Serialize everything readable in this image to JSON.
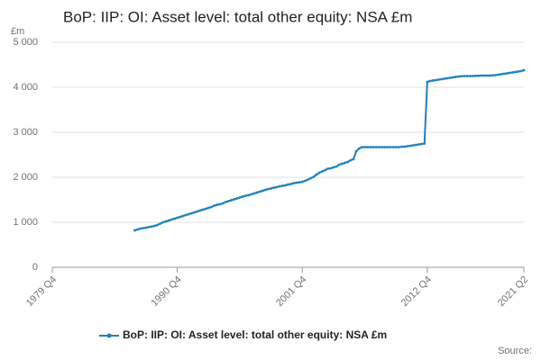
{
  "chart_data": {
    "type": "line",
    "title": "BoP: IIP: OI: Asset level: total other equity: NSA £m",
    "y_unit_label": "£m",
    "source": "Source:",
    "categories": [
      "1979 Q4",
      null,
      null,
      null,
      null,
      null,
      null,
      null,
      null,
      null,
      null,
      null,
      null,
      null,
      null,
      null,
      null,
      null,
      null,
      null,
      null,
      null,
      null,
      null,
      null,
      null,
      null,
      null,
      null,
      null,
      null,
      null,
      null,
      null,
      null,
      null,
      null,
      null,
      null,
      null,
      null,
      null,
      null,
      null,
      "1990 Q4",
      null,
      null,
      null,
      null,
      null,
      null,
      null,
      null,
      null,
      null,
      null,
      null,
      null,
      null,
      null,
      null,
      null,
      null,
      null,
      null,
      null,
      null,
      null,
      null,
      null,
      null,
      null,
      null,
      null,
      null,
      null,
      null,
      null,
      null,
      null,
      null,
      null,
      null,
      null,
      null,
      null,
      null,
      null,
      "2001 Q4",
      null,
      null,
      null,
      null,
      null,
      null,
      null,
      null,
      null,
      null,
      null,
      null,
      null,
      null,
      null,
      null,
      null,
      null,
      null,
      null,
      null,
      null,
      null,
      null,
      null,
      null,
      null,
      null,
      null,
      null,
      null,
      null,
      null,
      null,
      null,
      null,
      null,
      null,
      null,
      null,
      null,
      null,
      null,
      "2012 Q4",
      null,
      null,
      null,
      null,
      null,
      null,
      null,
      null,
      null,
      null,
      null,
      null,
      null,
      null,
      null,
      null,
      null,
      null,
      null,
      null,
      null,
      null,
      null,
      null,
      null,
      null,
      null,
      null,
      null,
      null,
      null,
      null,
      null,
      "2021 Q2"
    ],
    "series": [
      {
        "name": "BoP: IIP: OI: Asset level: total other equity: NSA £m",
        "color": "#1f80bd",
        "values": [
          null,
          null,
          null,
          null,
          null,
          null,
          null,
          null,
          null,
          null,
          null,
          null,
          null,
          null,
          null,
          null,
          null,
          null,
          null,
          null,
          null,
          null,
          null,
          null,
          null,
          null,
          null,
          null,
          null,
          820,
          840,
          860,
          870,
          880,
          895,
          905,
          920,
          940,
          970,
          1000,
          1020,
          1040,
          1060,
          1080,
          1100,
          1120,
          1140,
          1160,
          1180,
          1200,
          1220,
          1240,
          1260,
          1280,
          1300,
          1320,
          1340,
          1370,
          1390,
          1400,
          1420,
          1450,
          1470,
          1490,
          1510,
          1530,
          1550,
          1570,
          1590,
          1600,
          1620,
          1640,
          1660,
          1680,
          1700,
          1720,
          1740,
          1750,
          1770,
          1780,
          1800,
          1810,
          1820,
          1840,
          1850,
          1870,
          1880,
          1890,
          1900,
          1920,
          1950,
          1980,
          2010,
          2060,
          2100,
          2130,
          2160,
          2190,
          2200,
          2220,
          2240,
          2280,
          2300,
          2320,
          2340,
          2380,
          2400,
          2580,
          2640,
          2670,
          2670,
          2670,
          2670,
          2670,
          2670,
          2670,
          2670,
          2670,
          2670,
          2670,
          2670,
          2670,
          2670,
          2680,
          2680,
          2690,
          2700,
          2710,
          2720,
          2730,
          2740,
          2750,
          4120,
          4140,
          4150,
          4160,
          4170,
          4180,
          4190,
          4200,
          4210,
          4220,
          4230,
          4240,
          4245,
          4250,
          4250,
          4250,
          4250,
          4255,
          4255,
          4260,
          4260,
          4260,
          4260,
          4265,
          4270,
          4280,
          4290,
          4300,
          4310,
          4320,
          4330,
          4340,
          4350,
          4360,
          4380
        ]
      }
    ],
    "ylim": [
      0,
      5000
    ],
    "yticks": [
      0,
      {
        "value": 1000,
        "label": "1 000"
      },
      {
        "value": 2000,
        "label": "2 000"
      },
      {
        "value": 3000,
        "label": "3 000"
      },
      {
        "value": 4000,
        "label": "4 000"
      },
      {
        "value": 5000,
        "label": "5 000"
      }
    ],
    "grid": true
  }
}
